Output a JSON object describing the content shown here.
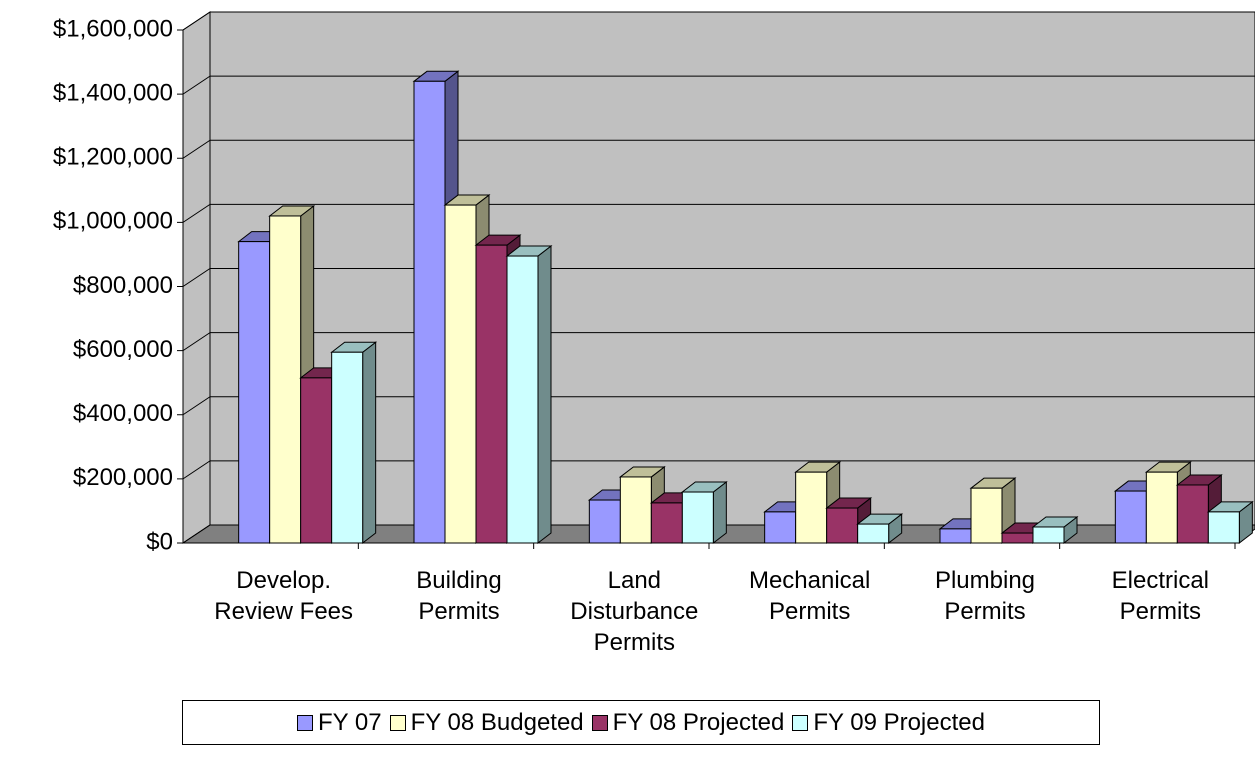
{
  "chart_data": {
    "type": "bar3d",
    "categories": [
      "Develop. Review Fees",
      "Building Permits",
      "Land Disturbance Permits",
      "Mechanical Permits",
      "Plumbing Permits",
      "Electrical Permits"
    ],
    "series": [
      {
        "name": "FY 07",
        "color": "#9999ff",
        "values": [
          940000,
          1440000,
          134000,
          97000,
          44000,
          162000
        ]
      },
      {
        "name": "FY 08 Budgeted",
        "color": "#ffffcc",
        "values": [
          1020000,
          1054000,
          206000,
          221000,
          171000,
          221000
        ]
      },
      {
        "name": "FY 08 Projected",
        "color": "#993366",
        "values": [
          515000,
          929000,
          125000,
          109000,
          31000,
          181000
        ]
      },
      {
        "name": "FY 09 Projected",
        "color": "#ccffff",
        "values": [
          595000,
          895000,
          159000,
          59000,
          50000,
          97000
        ]
      }
    ],
    "ylim": [
      0,
      1600000
    ],
    "yticks": [
      {
        "value": 0,
        "label": "$0"
      },
      {
        "value": 200000,
        "label": "$200,000"
      },
      {
        "value": 400000,
        "label": "$400,000"
      },
      {
        "value": 600000,
        "label": "$600,000"
      },
      {
        "value": 800000,
        "label": "$800,000"
      },
      {
        "value": 1000000,
        "label": "$1,000,000"
      },
      {
        "value": 1200000,
        "label": "$1,200,000"
      },
      {
        "value": 1400000,
        "label": "$1,400,000"
      },
      {
        "value": 1600000,
        "label": "$1,600,000"
      }
    ],
    "grid": true,
    "legend": "bottom"
  }
}
